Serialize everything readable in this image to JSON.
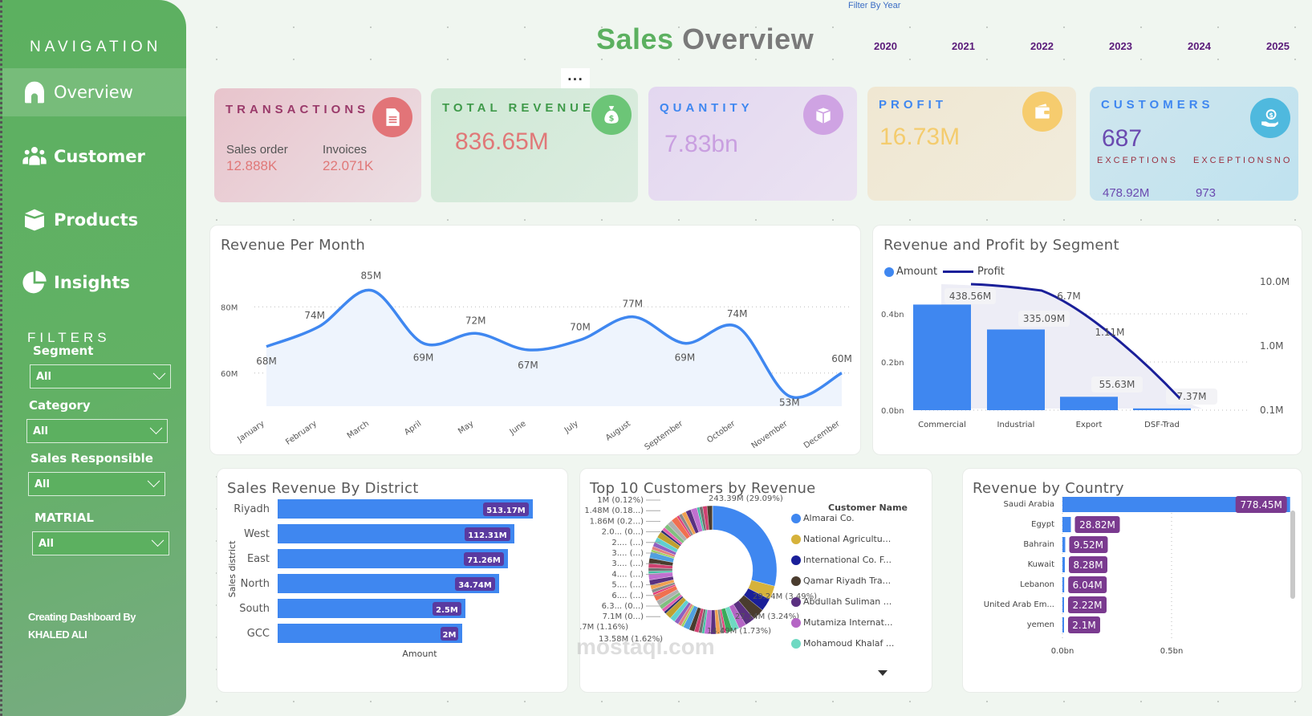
{
  "navigation": {
    "title": "NAVIGATION",
    "items": [
      {
        "label": "Overview",
        "icon": "home-icon",
        "active": true
      },
      {
        "label": "Customer",
        "icon": "users-icon",
        "active": false
      },
      {
        "label": "Products",
        "icon": "box-icon",
        "active": false
      },
      {
        "label": "Insights",
        "icon": "pie-chart-icon",
        "active": false
      }
    ]
  },
  "filters": {
    "title": "FILTERS",
    "items": [
      {
        "label": "Segment",
        "value": "All"
      },
      {
        "label": "Category",
        "value": "All"
      },
      {
        "label": "Sales Responsible",
        "value": "All"
      },
      {
        "label": "MATRIAL",
        "value": "All"
      }
    ]
  },
  "credit": {
    "line1": "Creating Dashboard By",
    "line2": "KHALED ALI"
  },
  "header": {
    "title_part1": "Sales",
    "title_part2": "Overview",
    "filter_label": "Filter By Year",
    "years": [
      "2020",
      "2021",
      "2022",
      "2023",
      "2024",
      "2025"
    ],
    "more_label": "..."
  },
  "kpis": {
    "transactions": {
      "title": "TRANSACTIONS",
      "sales_order_label": "Sales order",
      "sales_order_value": "12.888K",
      "invoices_label": "Invoices",
      "invoices_value": "22.071K"
    },
    "total_revenue": {
      "title": "TOTAL REVENUE",
      "value": "836.65M"
    },
    "quantity": {
      "title": "QUANTITY",
      "value": "7.83bn"
    },
    "profit": {
      "title": "PROFIT",
      "value": "16.73M"
    },
    "customers": {
      "title": "CUSTOMERS",
      "value": "687",
      "exceptions_label": "EXCEPTIONS",
      "exceptions_value": "478.92M",
      "exceptionsno_label": "EXCEPTIONSNO",
      "exceptionsno_value": "973"
    }
  },
  "colors": {
    "accent_green": "#5cb060",
    "bar_blue": "#3f87f0",
    "profit_line": "#1a1f99",
    "label_purple": "#7a3a8f"
  },
  "chart_data": [
    {
      "type": "area",
      "title": "Revenue Per Month",
      "categories": [
        "January",
        "February",
        "March",
        "April",
        "May",
        "June",
        "July",
        "August",
        "September",
        "October",
        "November",
        "December"
      ],
      "values": [
        68,
        74,
        85,
        69,
        72,
        67,
        70,
        77,
        69,
        74,
        53,
        60
      ],
      "data_labels": [
        "68M",
        "74M",
        "85M",
        "69M",
        "72M",
        "67M",
        "70M",
        "77M",
        "69M",
        "74M",
        "53M",
        "60M"
      ],
      "unit": "M",
      "yticks": [
        "60M",
        "80M"
      ],
      "ylim": [
        50,
        90
      ],
      "grid": true
    },
    {
      "type": "bar",
      "title": "Revenue and Profit by Segment",
      "categories": [
        "Commercial",
        "Industrial",
        "Export",
        "DSF-Trad"
      ],
      "series": [
        {
          "name": "Amount",
          "values": [
            438.56,
            335.09,
            55.63,
            7.37
          ],
          "labels": [
            "438.56M",
            "335.09M",
            "55.63M",
            "7.37M"
          ],
          "unit": "M"
        },
        {
          "name": "Profit",
          "values": [
            10.0,
            6.7,
            1.11,
            0.1
          ],
          "labels": [
            "",
            "6.7M",
            "1.11M",
            ""
          ],
          "unit": "M",
          "axis": "secondary-log"
        }
      ],
      "yticks_left": [
        "0.0bn",
        "0.2bn",
        "0.4bn"
      ],
      "yticks_right": [
        "0.1M",
        "1.0M",
        "10.0M"
      ],
      "legend": "top-left"
    },
    {
      "type": "bar",
      "orientation": "horizontal",
      "title": "Sales Revenue By District",
      "ylabel": "Sales district",
      "xlabel": "Amount",
      "categories": [
        "Riyadh",
        "West",
        "East",
        "North",
        "South",
        "GCC"
      ],
      "values": [
        513.17,
        112.31,
        71.26,
        34.74,
        2.5,
        2
      ],
      "labels": [
        "513.17M",
        "112.31M",
        "71.26M",
        "34.74M",
        "2.5M",
        "2M"
      ],
      "scale": "log"
    },
    {
      "type": "pie",
      "title": "Top 10 Customers by Revenue",
      "legend_title": "Customer Name",
      "legend": [
        {
          "name": "Almarai Co.",
          "color": "#3f87f0"
        },
        {
          "name": "National Agricultu...",
          "color": "#d6b23b"
        },
        {
          "name": "International Co. F...",
          "color": "#1a1f99"
        },
        {
          "name": "Qamar Riyadh Tra...",
          "color": "#4a3c2e"
        },
        {
          "name": "Abdullah Suliman ...",
          "color": "#5a3080"
        },
        {
          "name": "Mutamiza Internat...",
          "color": "#b565c5"
        },
        {
          "name": "Mohamoud Khalaf ...",
          "color": "#6fd9c2"
        }
      ],
      "slices_labeled": [
        {
          "label": "243.39M (29.09%)",
          "value": 243.39,
          "pct": 29.09
        },
        {
          "label": "29.24M (3.49%)",
          "value": 29.24,
          "pct": 3.49
        },
        {
          "label": "27.14M (3.24%)",
          "value": 27.14,
          "pct": 3.24
        },
        {
          "label": "14.49M (1.73%)",
          "value": 14.49,
          "pct": 1.73
        },
        {
          "label": "13.58M (1.62%)",
          "value": 13.58,
          "pct": 1.62
        },
        {
          "label": "9.7M (1.16%)",
          "value": 9.7,
          "pct": 1.16
        }
      ],
      "left_labels": [
        "1M (0.12%)",
        "1.48M (0.18...)",
        "1.86M (0.2...)",
        "2.0... (0...)",
        "2.... (...)",
        "3.... (...)",
        "3.... (...)",
        "4.... (...)",
        "5.... (...)",
        "6.... (...)",
        "6.3... (0...)",
        "7.1M (0...)"
      ]
    },
    {
      "type": "bar",
      "orientation": "horizontal",
      "title": "Revenue by Country",
      "categories": [
        "Saudi Arabia",
        "Egypt",
        "Bahrain",
        "Kuwait",
        "Lebanon",
        "United Arab Em...",
        "yemen"
      ],
      "values": [
        778.45,
        28.82,
        9.52,
        8.28,
        6.04,
        2.22,
        2.1
      ],
      "labels": [
        "778.45M",
        "28.82M",
        "9.52M",
        "8.28M",
        "6.04M",
        "2.22M",
        "2.1M"
      ],
      "xticks": [
        "0.0bn",
        "0.5bn"
      ],
      "xlim": [
        0,
        0.8
      ]
    }
  ],
  "watermark": "mostaql.com"
}
